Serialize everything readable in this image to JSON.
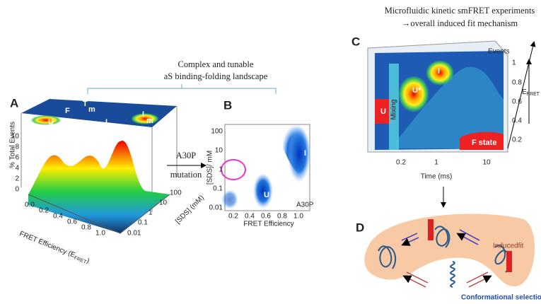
{
  "header": {
    "left_title": [
      "Complex and tunable",
      "aS binding-folding landscape"
    ],
    "right_title": [
      "Microfluidic kinetic smFRET experiments",
      "→overall induced fit mechanism"
    ]
  },
  "transition": {
    "label": "A30P",
    "sublabel": "mutation"
  },
  "panel_a": {
    "letter": "A",
    "y_label": "% Total Events",
    "x_label": [
      "FRET Efficiency (E",
      "FRET",
      ")"
    ],
    "z_label": "[SDS] (mM)",
    "y_ticks": [
      "10",
      "8",
      "6",
      "4",
      "2",
      "0"
    ],
    "x_ticks": [
      "0.0",
      "0.2",
      "0.4",
      "0.6",
      "0.8",
      "1.0"
    ],
    "z_ticks": [
      "0.01",
      "0.1",
      "1",
      "10",
      "100"
    ],
    "states": {
      "F": "F",
      "T": "T",
      "T_sub": "m",
      "U": "U",
      "I": "I",
      "I2": "I",
      "I2_sub": "m"
    }
  },
  "panel_b": {
    "letter": "B",
    "y_label": "[SDS]/ mM",
    "x_label": "FRET Efficiency",
    "y_ticks": [
      "100",
      "10",
      "1",
      "0.1",
      "0.01"
    ],
    "x_ticks": [
      "0.2",
      "0.4",
      "0.6",
      "0.8",
      "1.0"
    ],
    "variant": "A30P",
    "states": [
      "I",
      "U"
    ]
  },
  "panel_c": {
    "letter": "C",
    "z_label": "Events",
    "y_label": [
      "E",
      "FRET"
    ],
    "y_ticks": [
      "1",
      "0.8",
      "0.6",
      "0.4",
      "0.2"
    ],
    "x_ticks": [
      "0.2",
      "1",
      "10"
    ],
    "x_label": "Time (ms)",
    "band": "Mixing",
    "states": [
      "U",
      "U*",
      "I",
      "F state"
    ]
  },
  "panel_d": {
    "letter": "D",
    "induced": "Inducedfit",
    "selection": "Conformational selection"
  }
}
